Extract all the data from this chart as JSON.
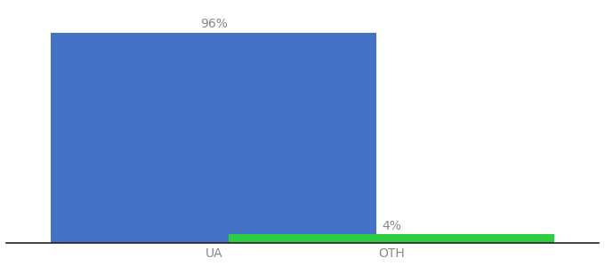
{
  "categories": [
    "UA",
    "OTH"
  ],
  "values": [
    96,
    4
  ],
  "bar_colors": [
    "#4472c4",
    "#2ecc40"
  ],
  "label_texts": [
    "96%",
    "4%"
  ],
  "ylim": [
    0,
    108
  ],
  "background_color": "#ffffff",
  "label_fontsize": 10,
  "tick_fontsize": 10,
  "bar_width": 0.55,
  "x_positions": [
    0.35,
    0.65
  ],
  "xlim": [
    0.0,
    1.0
  ],
  "figsize": [
    6.8,
    3.0
  ],
  "dpi": 100,
  "label_color": "#888888",
  "tick_color": "#888888"
}
